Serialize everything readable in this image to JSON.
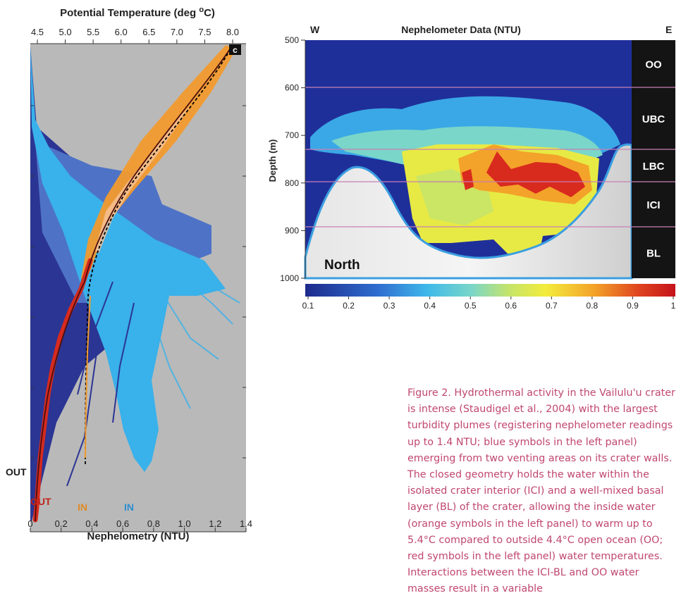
{
  "figure": {
    "left_panel": {
      "panel_letter": "c",
      "top_axis_label": "Potential Temperature (deg °C)",
      "top_axis_label_main": "Potential Temperature (deg ",
      "top_axis_label_sup": "o",
      "top_axis_label_end": "C)",
      "top_ticks": [
        "4.5",
        "5.0",
        "5.5",
        "6.0",
        "6.5",
        "7.0",
        "7.5",
        "8.0"
      ],
      "bottom_axis_label": "Nephelometry (NTU)",
      "bottom_ticks": [
        "0",
        "0.2",
        "0.4",
        "0.6",
        "0.8",
        "1.0",
        "1.2",
        "1.4"
      ],
      "labels": {
        "out_neph": "OUT",
        "out_temp": "OUT",
        "in_temp": "IN",
        "in_neph": "IN"
      },
      "colors": {
        "background": "#b9b9b9",
        "out_neph": "#2b3593",
        "in_neph": "#39b1ea",
        "out_temp": "#d62a1e",
        "in_temp": "#f29a2e",
        "mid_blue": "#4e73c6"
      }
    },
    "right_panel": {
      "title": "Nephelometer Data (NTU)",
      "west_label": "W",
      "east_label": "E",
      "ylabel": "Depth (m)",
      "y_ticks": [
        "500",
        "600",
        "700",
        "800",
        "900",
        "1000"
      ],
      "north_label": "North",
      "layers": [
        "OO",
        "UBC",
        "LBC",
        "ICI",
        "BL"
      ],
      "colorbar_ticks": [
        "0.1",
        "0.2",
        "0.3",
        "0.4",
        "0.5",
        "0.6",
        "0.7",
        "0.8",
        "0.9",
        "1"
      ],
      "colors": {
        "background": "#1f2f9a",
        "layer_line": "#c77fb5",
        "layer_box": "#141414"
      }
    }
  },
  "caption": "Figure 2. Hydrothermal activity in the Vailulu'u crater is intense (Staudigel et al., 2004) with the largest turbidity plumes (registering nephelometer readings up to 1.4 NTU; blue symbols in the left panel) emerging from two venting areas on its crater walls. The closed geometry holds the water within the isolated crater interior (ICI) and a well-mixed basal layer (BL) of the crater, allowing the inside water (orange symbols in the left panel) to warm up to 5.4°C compared to outside 4.4°C open ocean (OO; red symbols in the left panel) water temperatures. Interactions between the ICI-BL and OO water masses result in a variable"
}
